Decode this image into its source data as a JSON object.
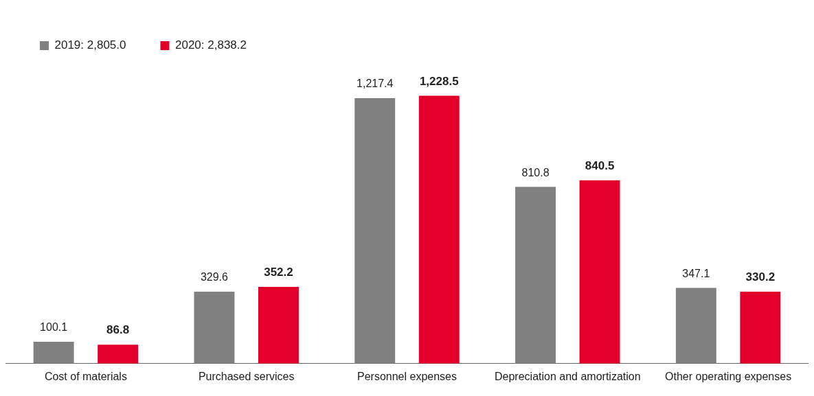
{
  "chart_data": {
    "type": "bar",
    "categories": [
      "Cost of materials",
      "Purchased services",
      "Personnel expenses",
      "Depreciation and amortization",
      "Other operating expenses"
    ],
    "series": [
      {
        "name": "2019: 2,805.0",
        "color": "#808080",
        "values": [
          100.1,
          329.6,
          1217.4,
          810.8,
          347.1
        ],
        "value_labels": [
          "100.1",
          "329.6",
          "1,217.4",
          "810.8",
          "347.1"
        ]
      },
      {
        "name": "2020: 2,838.2",
        "color": "#e2002a",
        "values": [
          86.8,
          352.2,
          1228.5,
          840.5,
          330.2
        ],
        "value_labels": [
          "86.8",
          "352.2",
          "1,228.5",
          "840.5",
          "330.2"
        ]
      }
    ],
    "legend": "top left",
    "grid": false
  }
}
